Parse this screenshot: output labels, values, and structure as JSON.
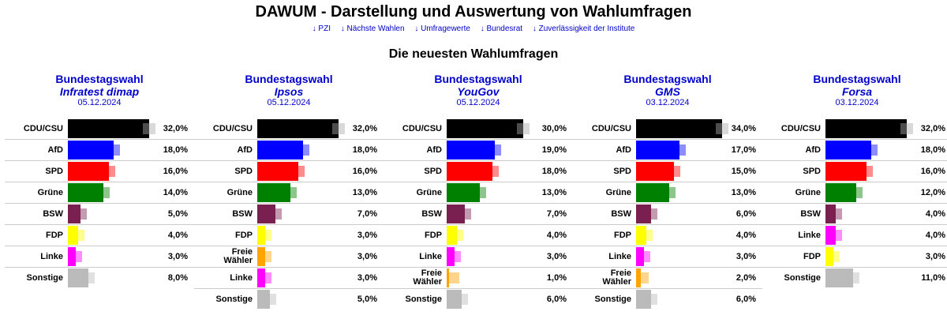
{
  "site_title": "DAWUM - Darstellung und Auswertung von Wahlumfragen",
  "nav": [
    "↓ PZI",
    "↓ Nächste Wahlen",
    "↓ Umfragewerte",
    "↓ Bundesrat",
    "↓ Zuverlässigkeit der Institute"
  ],
  "section_title": "Die neuesten Wahlumfragen",
  "colors": {
    "CDU/CSU": "#000000",
    "AfD": "#0000ff",
    "SPD": "#ff0000",
    "Grüne": "#008000",
    "BSW": "#7a2050",
    "FDP": "#ffff00",
    "Linke": "#ff00ff",
    "Freie Wähler": "#ffa500",
    "Sonstige": "#bbbbbb"
  },
  "chart_data": [
    {
      "type": "bar",
      "election": "Bundestagswahl",
      "institute": "Infratest dimap",
      "date": "05.12.2024",
      "parties": [
        "CDU/CSU",
        "AfD",
        "SPD",
        "Grüne",
        "BSW",
        "FDP",
        "Linke",
        "Sonstige"
      ],
      "values": [
        32,
        18,
        16,
        14,
        5,
        4,
        3,
        8
      ],
      "labels": [
        "32,0%",
        "18,0%",
        "16,0%",
        "14,0%",
        "5,0%",
        "4,0%",
        "3,0%",
        "8,0%"
      ]
    },
    {
      "type": "bar",
      "election": "Bundestagswahl",
      "institute": "Ipsos",
      "date": "05.12.2024",
      "parties": [
        "CDU/CSU",
        "AfD",
        "SPD",
        "Grüne",
        "BSW",
        "FDP",
        "Freie Wähler",
        "Linke",
        "Sonstige"
      ],
      "values": [
        32,
        18,
        16,
        13,
        7,
        3,
        3,
        3,
        5
      ],
      "labels": [
        "32,0%",
        "18,0%",
        "16,0%",
        "13,0%",
        "7,0%",
        "3,0%",
        "3,0%",
        "3,0%",
        "5,0%"
      ]
    },
    {
      "type": "bar",
      "election": "Bundestagswahl",
      "institute": "YouGov",
      "date": "05.12.2024",
      "parties": [
        "CDU/CSU",
        "AfD",
        "SPD",
        "Grüne",
        "BSW",
        "FDP",
        "Linke",
        "Freie Wähler",
        "Sonstige"
      ],
      "values": [
        30,
        19,
        18,
        13,
        7,
        4,
        3,
        1,
        6
      ],
      "labels": [
        "30,0%",
        "19,0%",
        "18,0%",
        "13,0%",
        "7,0%",
        "4,0%",
        "3,0%",
        "1,0%",
        "6,0%"
      ]
    },
    {
      "type": "bar",
      "election": "Bundestagswahl",
      "institute": "GMS",
      "date": "03.12.2024",
      "parties": [
        "CDU/CSU",
        "AfD",
        "SPD",
        "Grüne",
        "BSW",
        "FDP",
        "Linke",
        "Freie Wähler",
        "Sonstige"
      ],
      "values": [
        34,
        17,
        15,
        13,
        6,
        4,
        3,
        2,
        6
      ],
      "labels": [
        "34,0%",
        "17,0%",
        "15,0%",
        "13,0%",
        "6,0%",
        "4,0%",
        "3,0%",
        "2,0%",
        "6,0%"
      ]
    },
    {
      "type": "bar",
      "election": "Bundestagswahl",
      "institute": "Forsa",
      "date": "03.12.2024",
      "parties": [
        "CDU/CSU",
        "AfD",
        "SPD",
        "Grüne",
        "BSW",
        "Linke",
        "FDP",
        "Sonstige"
      ],
      "values": [
        32,
        18,
        16,
        12,
        4,
        4,
        3,
        11
      ],
      "labels": [
        "32,0%",
        "18,0%",
        "16,0%",
        "12,0%",
        "4,0%",
        "4,0%",
        "3,0%",
        "11,0%"
      ]
    }
  ]
}
